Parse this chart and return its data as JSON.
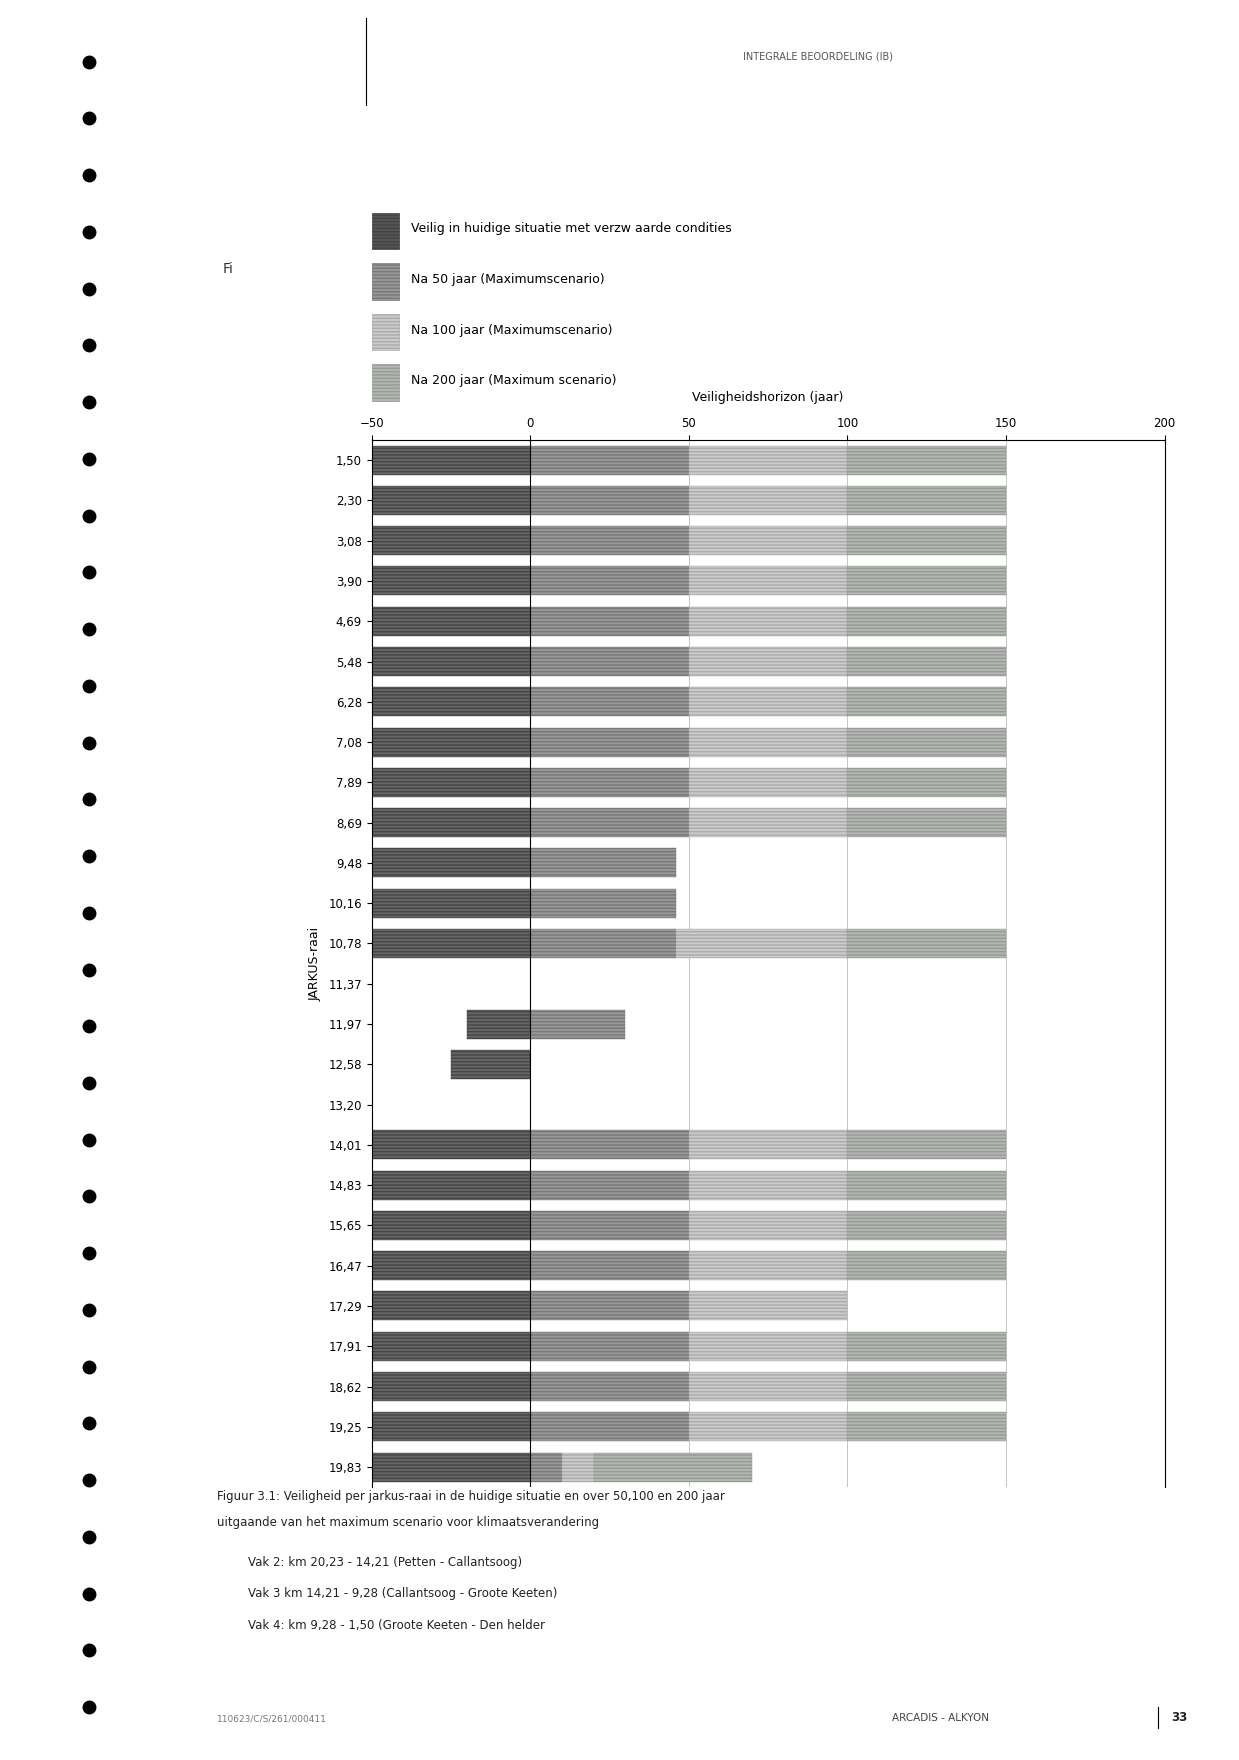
{
  "title": "Veiligheidshorizon (jaar)",
  "ylabel": "JARKUS-raai",
  "xlim": [
    -50,
    200
  ],
  "xticks": [
    -50,
    0,
    50,
    100,
    150,
    200
  ],
  "legend_labels": [
    "Veilig in huidige situatie met verzw aarde condities",
    "Na 50 jaar (Maximumscenario)",
    "Na 100 jaar (Maximumscenario)",
    "Na 200 jaar (Maximum scenario)"
  ],
  "ytick_labels": [
    "1,50",
    "2,30",
    "3,08",
    "3,90",
    "4,69",
    "5,48",
    "6,28",
    "7,08",
    "7,89",
    "8,69",
    "9,48",
    "10,16",
    "10,78",
    "11,37",
    "11,97",
    "12,58",
    "13,20",
    "14,01",
    "14,83",
    "15,65",
    "16,47",
    "17,29",
    "17,91",
    "18,62",
    "19,25",
    "19,83"
  ],
  "bar_rows": [
    [
      "1,50",
      50,
      50,
      50,
      50
    ],
    [
      "2,30",
      50,
      50,
      50,
      50
    ],
    [
      "3,08",
      50,
      50,
      50,
      50
    ],
    [
      "3,90",
      50,
      50,
      50,
      50
    ],
    [
      "4,69",
      50,
      50,
      50,
      50
    ],
    [
      "5,48",
      50,
      50,
      50,
      50
    ],
    [
      "6,28",
      50,
      50,
      50,
      50
    ],
    [
      "7,08",
      50,
      50,
      50,
      50
    ],
    [
      "7,89",
      50,
      50,
      50,
      50
    ],
    [
      "8,69",
      50,
      50,
      50,
      50
    ],
    [
      "9,48",
      50,
      46,
      0,
      0
    ],
    [
      "10,16",
      50,
      46,
      0,
      0
    ],
    [
      "10,78",
      50,
      46,
      54,
      50
    ],
    [
      "11,37",
      0,
      0,
      0,
      0
    ],
    [
      "11,97",
      20,
      30,
      0,
      0
    ],
    [
      "12,58",
      25,
      0,
      0,
      0
    ],
    [
      "13,20",
      0,
      0,
      0,
      0
    ],
    [
      "14,01",
      50,
      50,
      50,
      50
    ],
    [
      "14,83",
      50,
      50,
      50,
      50
    ],
    [
      "15,65",
      50,
      50,
      50,
      50
    ],
    [
      "16,47",
      50,
      50,
      50,
      50
    ],
    [
      "17,29",
      50,
      50,
      50,
      0
    ],
    [
      "17,91",
      50,
      50,
      50,
      50
    ],
    [
      "18,62",
      50,
      50,
      50,
      50
    ],
    [
      "19,25",
      50,
      50,
      50,
      50
    ],
    [
      "19,83",
      50,
      10,
      10,
      50
    ]
  ],
  "color_dark": "#666666",
  "color_s2": "#999999",
  "color_s3": "#cccccc",
  "color_s4": "#b0b8b0",
  "color_legend_dark": "#555555",
  "color_legend_s2": "#999999",
  "color_legend_s3": "#cccccc",
  "color_legend_s4": "#b0b8b0",
  "bg_color": "#ffffff",
  "fig_width": 12.39,
  "fig_height": 17.6,
  "caption_lines": [
    "Figuur 3.1: Veiligheid per jarkus-raai in de huidige situatie en over 50,100 en 200 jaar",
    "uitgaande van het maximum scenario voor klimaatsverandering",
    "Vak 2: km 20,23 - 14,21 (Petten - Callantsoog)",
    "Vak 3 km 14,21 - 9,28 (Callantsoog - Groote Keeten)",
    "Vak 4: km 9,28 - 1,50 (Groote Keeten - Den helder"
  ],
  "header_text": "INTEGRALE BEOORDELING (IB)",
  "bottom_left": "110623/C/S/261/000411",
  "bottom_right": "ARCADIS - ALKYON",
  "bottom_page": "33"
}
